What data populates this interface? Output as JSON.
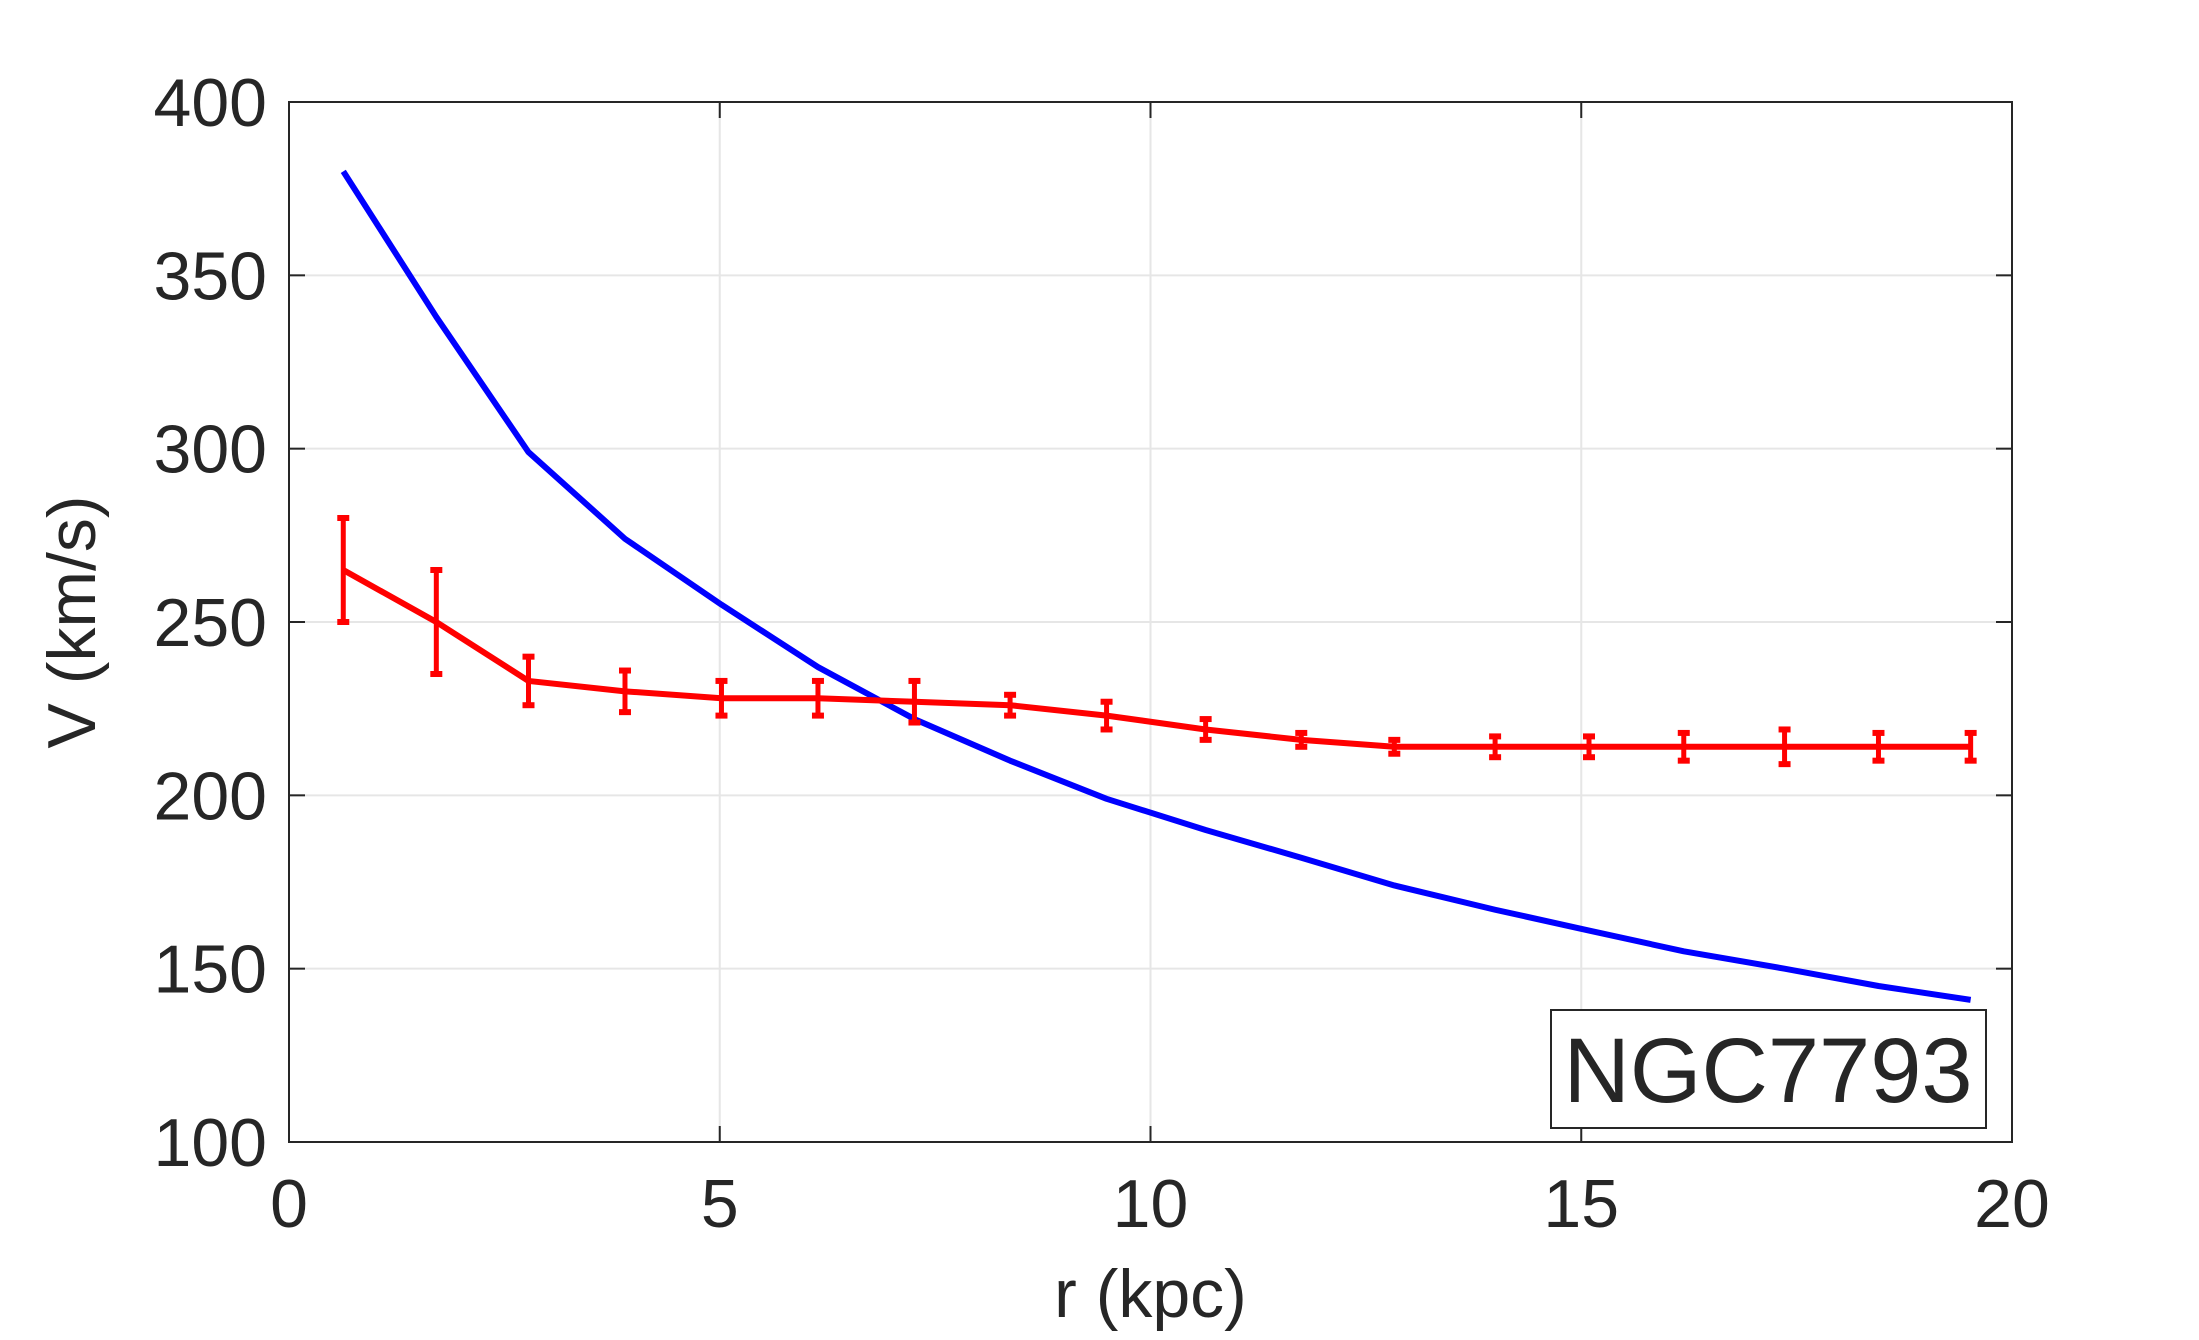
{
  "chart_data": {
    "type": "line",
    "title": "",
    "xlabel": "r (kpc)",
    "ylabel": "V (km/s)",
    "xlim": [
      0,
      20
    ],
    "ylim": [
      100,
      400
    ],
    "xticks": [
      0,
      5,
      10,
      15,
      20
    ],
    "yticks": [
      100,
      150,
      200,
      250,
      300,
      350,
      400
    ],
    "grid": true,
    "annotation": "NGC7793",
    "annotation_placement": "bottom-right",
    "series": [
      {
        "color": "#ff0000",
        "style": "line-with-errorbars",
        "x": [
          0.63,
          1.71,
          2.78,
          3.9,
          5.02,
          6.14,
          7.26,
          8.37,
          9.49,
          10.64,
          11.75,
          12.83,
          14.0,
          15.09,
          16.19,
          17.36,
          18.45,
          19.52
        ],
        "y": [
          265,
          250,
          233,
          230,
          228,
          228,
          227,
          226,
          223,
          219,
          216,
          214,
          214,
          214,
          214,
          214,
          214,
          214
        ],
        "err": [
          15,
          15,
          7,
          6,
          5,
          5,
          6,
          3,
          4,
          3,
          2,
          2,
          3,
          3,
          4,
          5,
          4,
          4
        ]
      },
      {
        "color": "#0000ff",
        "style": "line",
        "x": [
          0.63,
          1.71,
          2.78,
          3.9,
          5.02,
          6.14,
          7.26,
          8.37,
          9.49,
          10.64,
          11.75,
          12.83,
          14.0,
          15.09,
          16.19,
          17.36,
          18.45,
          19.52
        ],
        "y": [
          380,
          338,
          299,
          274,
          255,
          237,
          222,
          210,
          199,
          190,
          182,
          174,
          167,
          161,
          155,
          150,
          145,
          141
        ]
      }
    ]
  }
}
